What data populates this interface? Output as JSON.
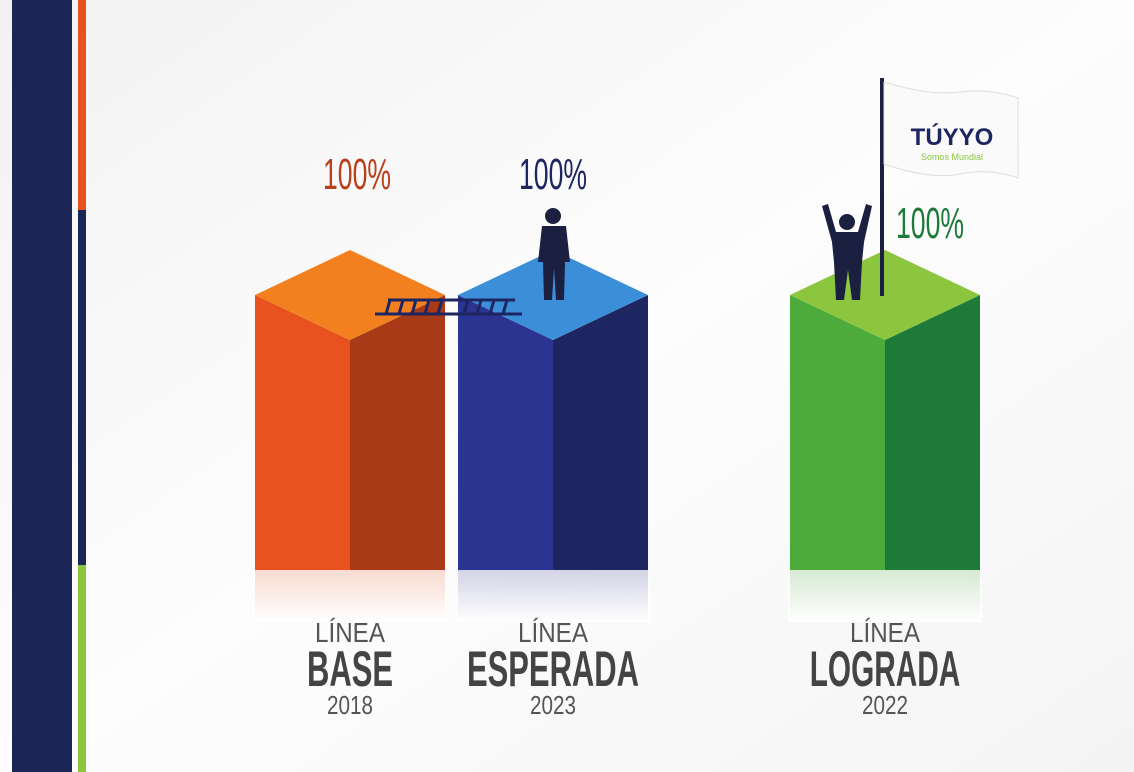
{
  "chart_data": {
    "type": "bar3d",
    "categories": [
      [
        "LÍNEA",
        "BASE",
        "2018"
      ],
      [
        "LÍNEA",
        "ESPERADA",
        "2023"
      ],
      [
        "LÍNEA",
        "LOGRADA",
        "2022"
      ]
    ],
    "values": [
      100,
      100,
      100
    ],
    "value_labels": [
      "100%",
      "100%",
      "100%"
    ],
    "colors": [
      {
        "front": "#e8521f",
        "side": "#a83a17",
        "top": "#f2801f",
        "label": "#b8401a"
      },
      {
        "front": "#2b3591",
        "side": "#1d2660",
        "top": "#3b8fd9",
        "label": "#1d2660"
      },
      {
        "front": "#4cab3a",
        "side": "#1e7a38",
        "top": "#8cc63e",
        "label": "#1e7a38"
      }
    ],
    "logo": {
      "text": "TÚYYO",
      "tagline": "Somos Mundial"
    }
  }
}
